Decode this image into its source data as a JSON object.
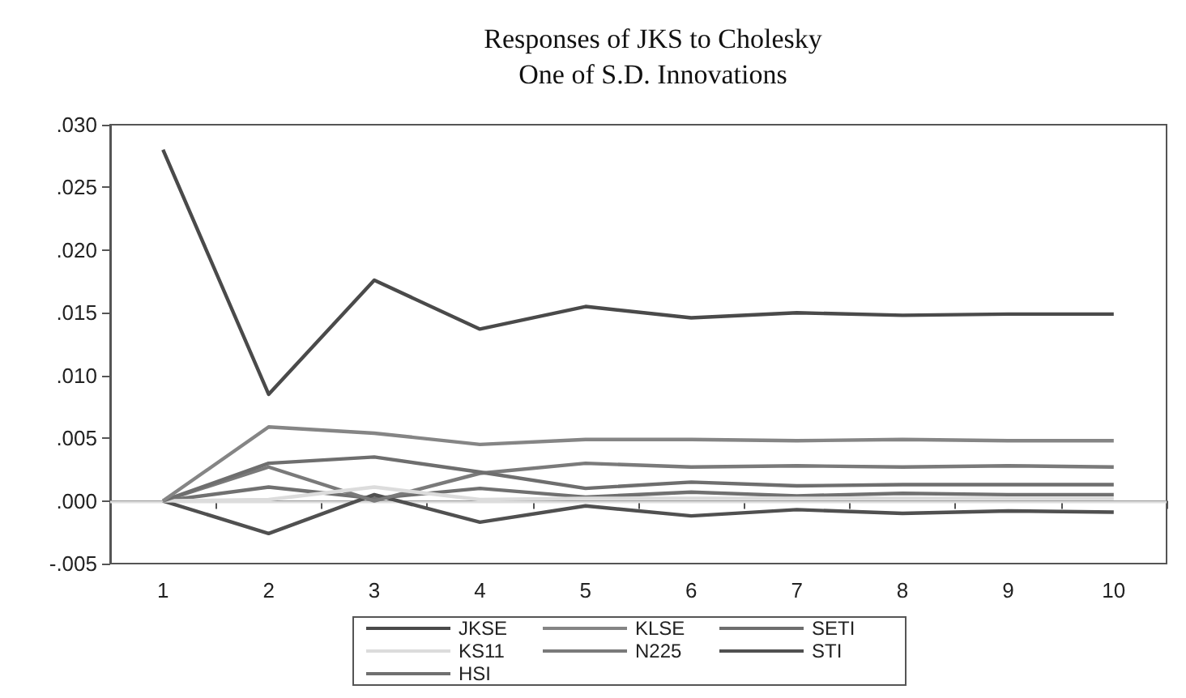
{
  "chart_data": {
    "type": "line",
    "title": "Responses of JKS to Cholesky\nOne of S.D. Innovations",
    "categories": [
      "1",
      "2",
      "3",
      "4",
      "5",
      "6",
      "7",
      "8",
      "9",
      "10"
    ],
    "series": [
      {
        "name": "JKSE",
        "color": "#4a4a4a",
        "values": [
          0.028,
          0.0085,
          0.0176,
          0.0137,
          0.0155,
          0.0146,
          0.015,
          0.0148,
          0.0149,
          0.0149
        ]
      },
      {
        "name": "KLSE",
        "color": "#858585",
        "values": [
          0,
          0.0059,
          0.0054,
          0.0045,
          0.0049,
          0.0049,
          0.0048,
          0.0049,
          0.0048,
          0.0048
        ]
      },
      {
        "name": "SETI",
        "color": "#6e6e6e",
        "values": [
          0,
          0.003,
          0.0035,
          0.0023,
          0.001,
          0.0015,
          0.0012,
          0.0013,
          0.0013,
          0.0013
        ]
      },
      {
        "name": "KS11",
        "color": "#dcdcdc",
        "values": [
          0,
          0.0001,
          0.0011,
          0.0001,
          0.0002,
          0.0002,
          0.0002,
          0.0002,
          0.0002,
          0.0002
        ]
      },
      {
        "name": "N225",
        "color": "#7a7a7a",
        "values": [
          0,
          0.0027,
          0,
          0.0022,
          0.003,
          0.0027,
          0.0028,
          0.0027,
          0.0028,
          0.0027
        ]
      },
      {
        "name": "STI",
        "color": "#505050",
        "values": [
          0,
          -0.0026,
          0.0005,
          -0.0017,
          -0.0004,
          -0.0012,
          -0.0007,
          -0.001,
          -0.0008,
          -0.0009
        ]
      },
      {
        "name": "HSI",
        "color": "#707070",
        "values": [
          0,
          0.0011,
          0.0002,
          0.001,
          0.0003,
          0.0007,
          0.0004,
          0.0006,
          0.0005,
          0.0005
        ]
      }
    ],
    "ylim": [
      -0.005,
      0.03
    ],
    "yticks": [
      {
        "value": -0.005,
        "label": "-.005"
      },
      {
        "value": 0,
        "label": ".000"
      },
      {
        "value": 0.005,
        "label": ".005"
      },
      {
        "value": 0.01,
        "label": ".010"
      },
      {
        "value": 0.015,
        "label": ".015"
      },
      {
        "value": 0.02,
        "label": ".020"
      },
      {
        "value": 0.025,
        "label": ".025"
      },
      {
        "value": 0.03,
        "label": ".030"
      }
    ],
    "ref_lines": [
      {
        "axis": "y",
        "value": 0,
        "color": "#dddddd"
      }
    ],
    "grid": false,
    "legend": "bottom",
    "marker": "none",
    "line_style": "solid"
  }
}
